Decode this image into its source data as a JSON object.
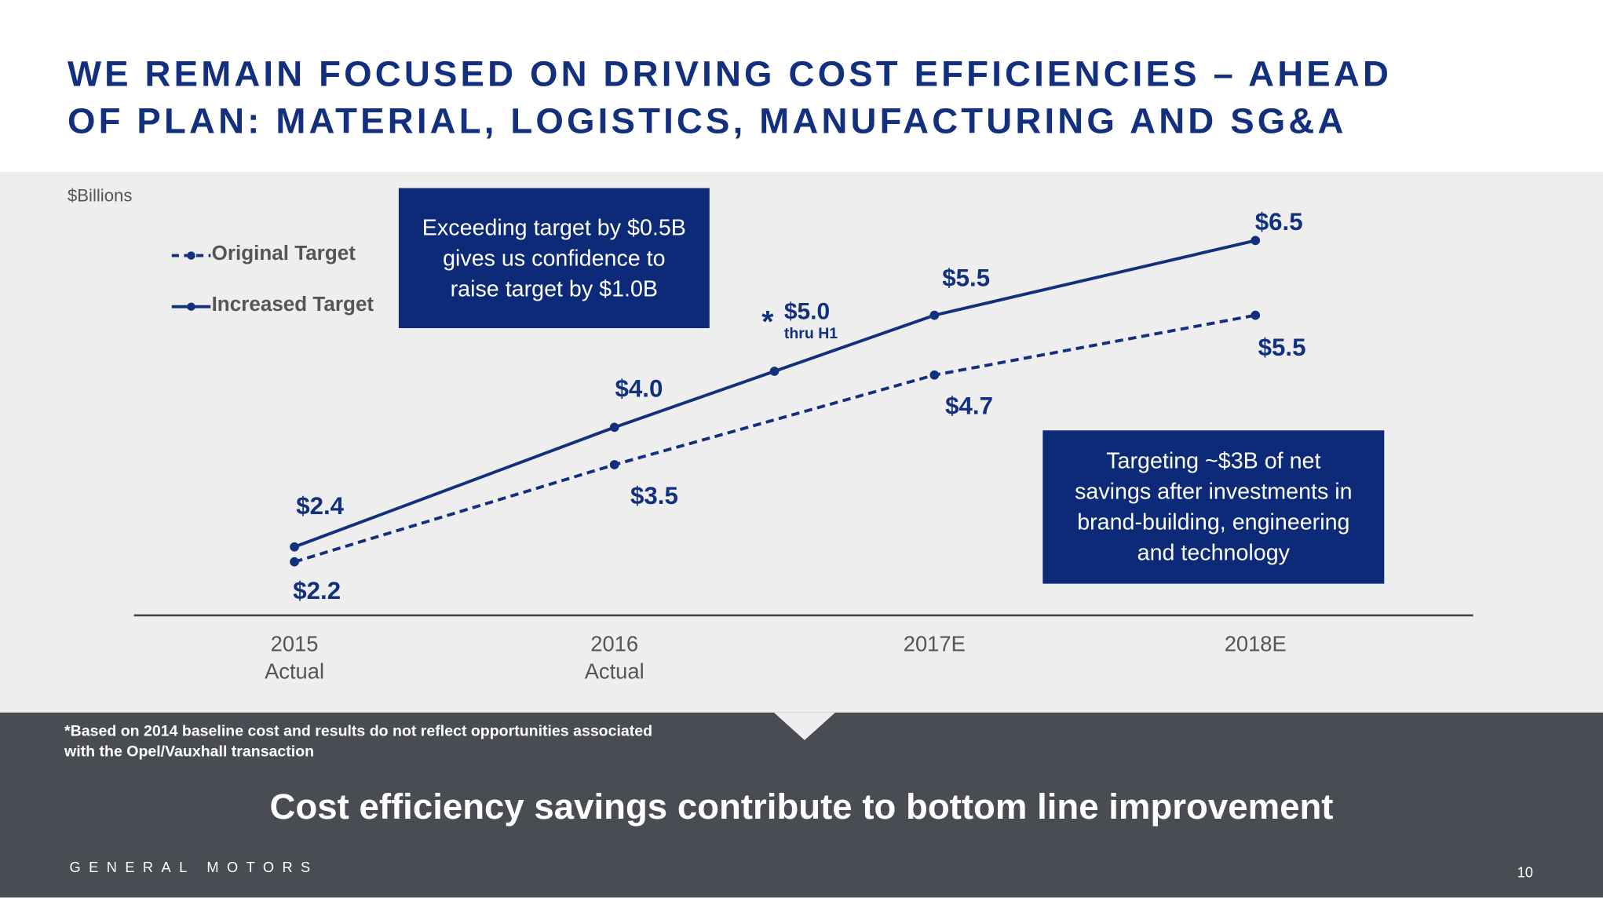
{
  "title": {
    "line1": "WE REMAIN FOCUSED ON DRIVING COST EFFICIENCIES – AHEAD",
    "line2": "OF PLAN:  MATERIAL, LOGISTICS, MANUFACTURING AND SG&A"
  },
  "callouts": {
    "top": [
      "Exceeding target by $0.5B",
      "gives us confidence to",
      "raise target by $1.0B"
    ],
    "bottom": [
      "Targeting ~$3B of net",
      "savings after investments in",
      "brand-building, engineering",
      "and technology"
    ]
  },
  "footnote": [
    "*Based on 2014 baseline cost and results do not reflect opportunities associated",
    "with the Opel/Vauxhall transaction"
  ],
  "takeaway": "Cost efficiency savings contribute to bottom line improvement",
  "brand": "GENERAL MOTORS",
  "page_number": "10",
  "colors": {
    "series": "#13307f",
    "box": "#0d2a78",
    "footer": "#4a4c53",
    "background": "#eeeeee"
  },
  "chart_data": {
    "type": "line",
    "ylabel": "$Billions",
    "categories": [
      {
        "line1": "2015",
        "line2": "Actual"
      },
      {
        "line1": "2016",
        "line2": "Actual"
      },
      {
        "line1": "2017E",
        "line2": ""
      },
      {
        "line1": "2018E",
        "line2": ""
      }
    ],
    "series": [
      {
        "name": "Original Target",
        "style": "dashed",
        "values": [
          2.2,
          3.5,
          4.7,
          5.5
        ],
        "labels": [
          "$2.2",
          "$3.5",
          "$4.7",
          "$5.5"
        ]
      },
      {
        "name": "Increased Target",
        "style": "solid",
        "values": [
          2.4,
          4.0,
          5.5,
          6.5
        ],
        "labels": [
          "$2.4",
          "$4.0",
          "$5.5",
          "$6.5"
        ]
      }
    ],
    "annotation": {
      "after_category": "2016",
      "value": 5.0,
      "label": "$5.0",
      "sublabel": "thru H1",
      "marker": "*"
    },
    "legend": "top-left",
    "grid": false
  }
}
